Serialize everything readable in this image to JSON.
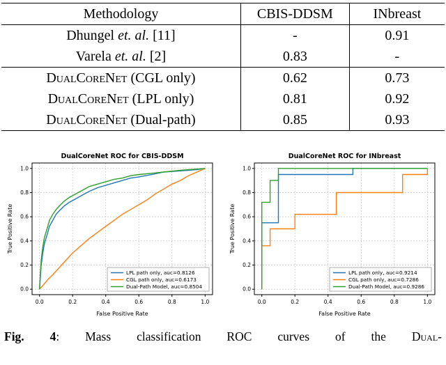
{
  "table": {
    "headers": [
      {
        "text": "Methodology",
        "bold": true
      },
      {
        "text": "CBIS-DDSM",
        "bold": false
      },
      {
        "text": "INbreast",
        "bold": false
      }
    ],
    "rows": [
      {
        "method": [
          {
            "text": "Dhungel ",
            "style": "normal"
          },
          {
            "text": "et. al.",
            "style": "italic"
          },
          {
            "text": " [11]",
            "style": "normal"
          }
        ],
        "values": [
          {
            "text": "-",
            "bold": false
          },
          {
            "text": "0.91",
            "bold": false
          }
        ],
        "rule_below": false
      },
      {
        "method": [
          {
            "text": "Varela ",
            "style": "normal"
          },
          {
            "text": "et. al.",
            "style": "italic"
          },
          {
            "text": " [2]",
            "style": "normal"
          }
        ],
        "values": [
          {
            "text": "0.83",
            "bold": false
          },
          {
            "text": "-",
            "bold": false
          }
        ],
        "rule_below": true
      },
      {
        "method": [
          {
            "text": "DualCoreNet",
            "style": "smallcaps"
          },
          {
            "text": " (CGL only)",
            "style": "normal"
          }
        ],
        "values": [
          {
            "text": "0.62",
            "bold": false
          },
          {
            "text": "0.73",
            "bold": false
          }
        ],
        "rule_below": false
      },
      {
        "method": [
          {
            "text": "DualCoreNet",
            "style": "smallcaps"
          },
          {
            "text": " (LPL only)",
            "style": "normal"
          }
        ],
        "values": [
          {
            "text": "0.81",
            "bold": false
          },
          {
            "text": "0.92",
            "bold": false
          }
        ],
        "rule_below": false
      },
      {
        "method": [
          {
            "text": "DualCoreNet",
            "style": "smallcaps"
          },
          {
            "text": " (Dual-path)",
            "style": "normal"
          }
        ],
        "values": [
          {
            "text": "0.85",
            "bold": true
          },
          {
            "text": "0.93",
            "bold": true
          }
        ],
        "rule_below": false
      }
    ]
  },
  "chart_data": [
    {
      "type": "line",
      "title": "DualCoreNet ROC for CBIS-DDSM",
      "xlabel": "False Positive Rate",
      "ylabel": "True Positive Rate",
      "xlim": [
        -0.045,
        1.045
      ],
      "ylim": [
        -0.045,
        1.045
      ],
      "xticks": [
        0.0,
        0.2,
        0.4,
        0.6,
        0.8,
        1.0
      ],
      "yticks": [
        0.0,
        0.2,
        0.4,
        0.6,
        0.8,
        1.0
      ],
      "grid": true,
      "legend_position": "lower right",
      "series": [
        {
          "name": "LPL path only, auc=0.8126",
          "color": "#1f77b4",
          "x": [
            0,
            0.005,
            0.01,
            0.02,
            0.03,
            0.05,
            0.06,
            0.08,
            0.1,
            0.12,
            0.15,
            0.18,
            0.22,
            0.26,
            0.3,
            0.35,
            0.4,
            0.45,
            0.5,
            0.55,
            0.6,
            0.68,
            0.75,
            0.85,
            0.95,
            1
          ],
          "y": [
            0,
            0.1,
            0.2,
            0.3,
            0.38,
            0.47,
            0.52,
            0.57,
            0.62,
            0.65,
            0.69,
            0.72,
            0.75,
            0.78,
            0.81,
            0.84,
            0.86,
            0.88,
            0.9,
            0.92,
            0.93,
            0.95,
            0.97,
            0.98,
            0.99,
            1
          ]
        },
        {
          "name": "CGL path only, auc=0.6173",
          "color": "#ff7f0e",
          "x": [
            0,
            0.02,
            0.05,
            0.08,
            0.12,
            0.16,
            0.2,
            0.25,
            0.3,
            0.35,
            0.4,
            0.45,
            0.5,
            0.55,
            0.6,
            0.65,
            0.7,
            0.75,
            0.8,
            0.85,
            0.9,
            0.95,
            1
          ],
          "y": [
            0,
            0.03,
            0.08,
            0.12,
            0.18,
            0.24,
            0.3,
            0.36,
            0.42,
            0.47,
            0.52,
            0.57,
            0.62,
            0.66,
            0.7,
            0.74,
            0.79,
            0.83,
            0.87,
            0.9,
            0.94,
            0.97,
            1
          ]
        },
        {
          "name": "Dual-Path Model, auc=0.8504",
          "color": "#2ca02c",
          "x": [
            0,
            0.005,
            0.01,
            0.02,
            0.03,
            0.05,
            0.06,
            0.08,
            0.1,
            0.12,
            0.15,
            0.18,
            0.22,
            0.26,
            0.3,
            0.35,
            0.4,
            0.45,
            0.5,
            0.55,
            0.6,
            0.68,
            0.75,
            0.85,
            0.95,
            1
          ],
          "y": [
            0,
            0.13,
            0.24,
            0.35,
            0.43,
            0.52,
            0.57,
            0.62,
            0.66,
            0.69,
            0.73,
            0.76,
            0.79,
            0.82,
            0.85,
            0.87,
            0.89,
            0.91,
            0.92,
            0.94,
            0.95,
            0.96,
            0.97,
            0.985,
            0.995,
            1
          ]
        }
      ]
    },
    {
      "type": "line",
      "title": "DualCoreNet ROC for INbreast",
      "xlabel": "False Positive Rate",
      "ylabel": "True Positive Rate",
      "xlim": [
        -0.045,
        1.045
      ],
      "ylim": [
        -0.045,
        1.045
      ],
      "xticks": [
        0.0,
        0.2,
        0.4,
        0.6,
        0.8,
        1.0
      ],
      "yticks": [
        0.0,
        0.2,
        0.4,
        0.6,
        0.8,
        1.0
      ],
      "grid": true,
      "legend_position": "lower right",
      "series": [
        {
          "name": "LPL path only, auc=0.9214",
          "color": "#1f77b4",
          "x": [
            0,
            0,
            0.1,
            0.1,
            0.55,
            0.55,
            1
          ],
          "y": [
            0,
            0.55,
            0.55,
            0.95,
            0.95,
            1,
            1
          ]
        },
        {
          "name": "CGL path only, auc=0.7286",
          "color": "#ff7f0e",
          "x": [
            0,
            0,
            0.05,
            0.05,
            0.2,
            0.2,
            0.45,
            0.45,
            0.85,
            0.85,
            1,
            1
          ],
          "y": [
            0,
            0.36,
            0.36,
            0.5,
            0.5,
            0.62,
            0.62,
            0.8,
            0.8,
            0.95,
            0.95,
            1
          ]
        },
        {
          "name": "Dual-Path Model, auc=0.9286",
          "color": "#2ca02c",
          "x": [
            0,
            0,
            0.05,
            0.05,
            0.1,
            0.1,
            1
          ],
          "y": [
            0,
            0.72,
            0.72,
            0.9,
            0.9,
            1,
            1
          ]
        }
      ]
    }
  ],
  "caption": {
    "fig_label": "Fig. 4",
    "text": ": Mass classification ROC curves of the ",
    "trailing": "Dual-"
  },
  "colors": {
    "lpl": "#1f77b4",
    "cgl": "#ff7f0e",
    "dual": "#2ca02c"
  }
}
